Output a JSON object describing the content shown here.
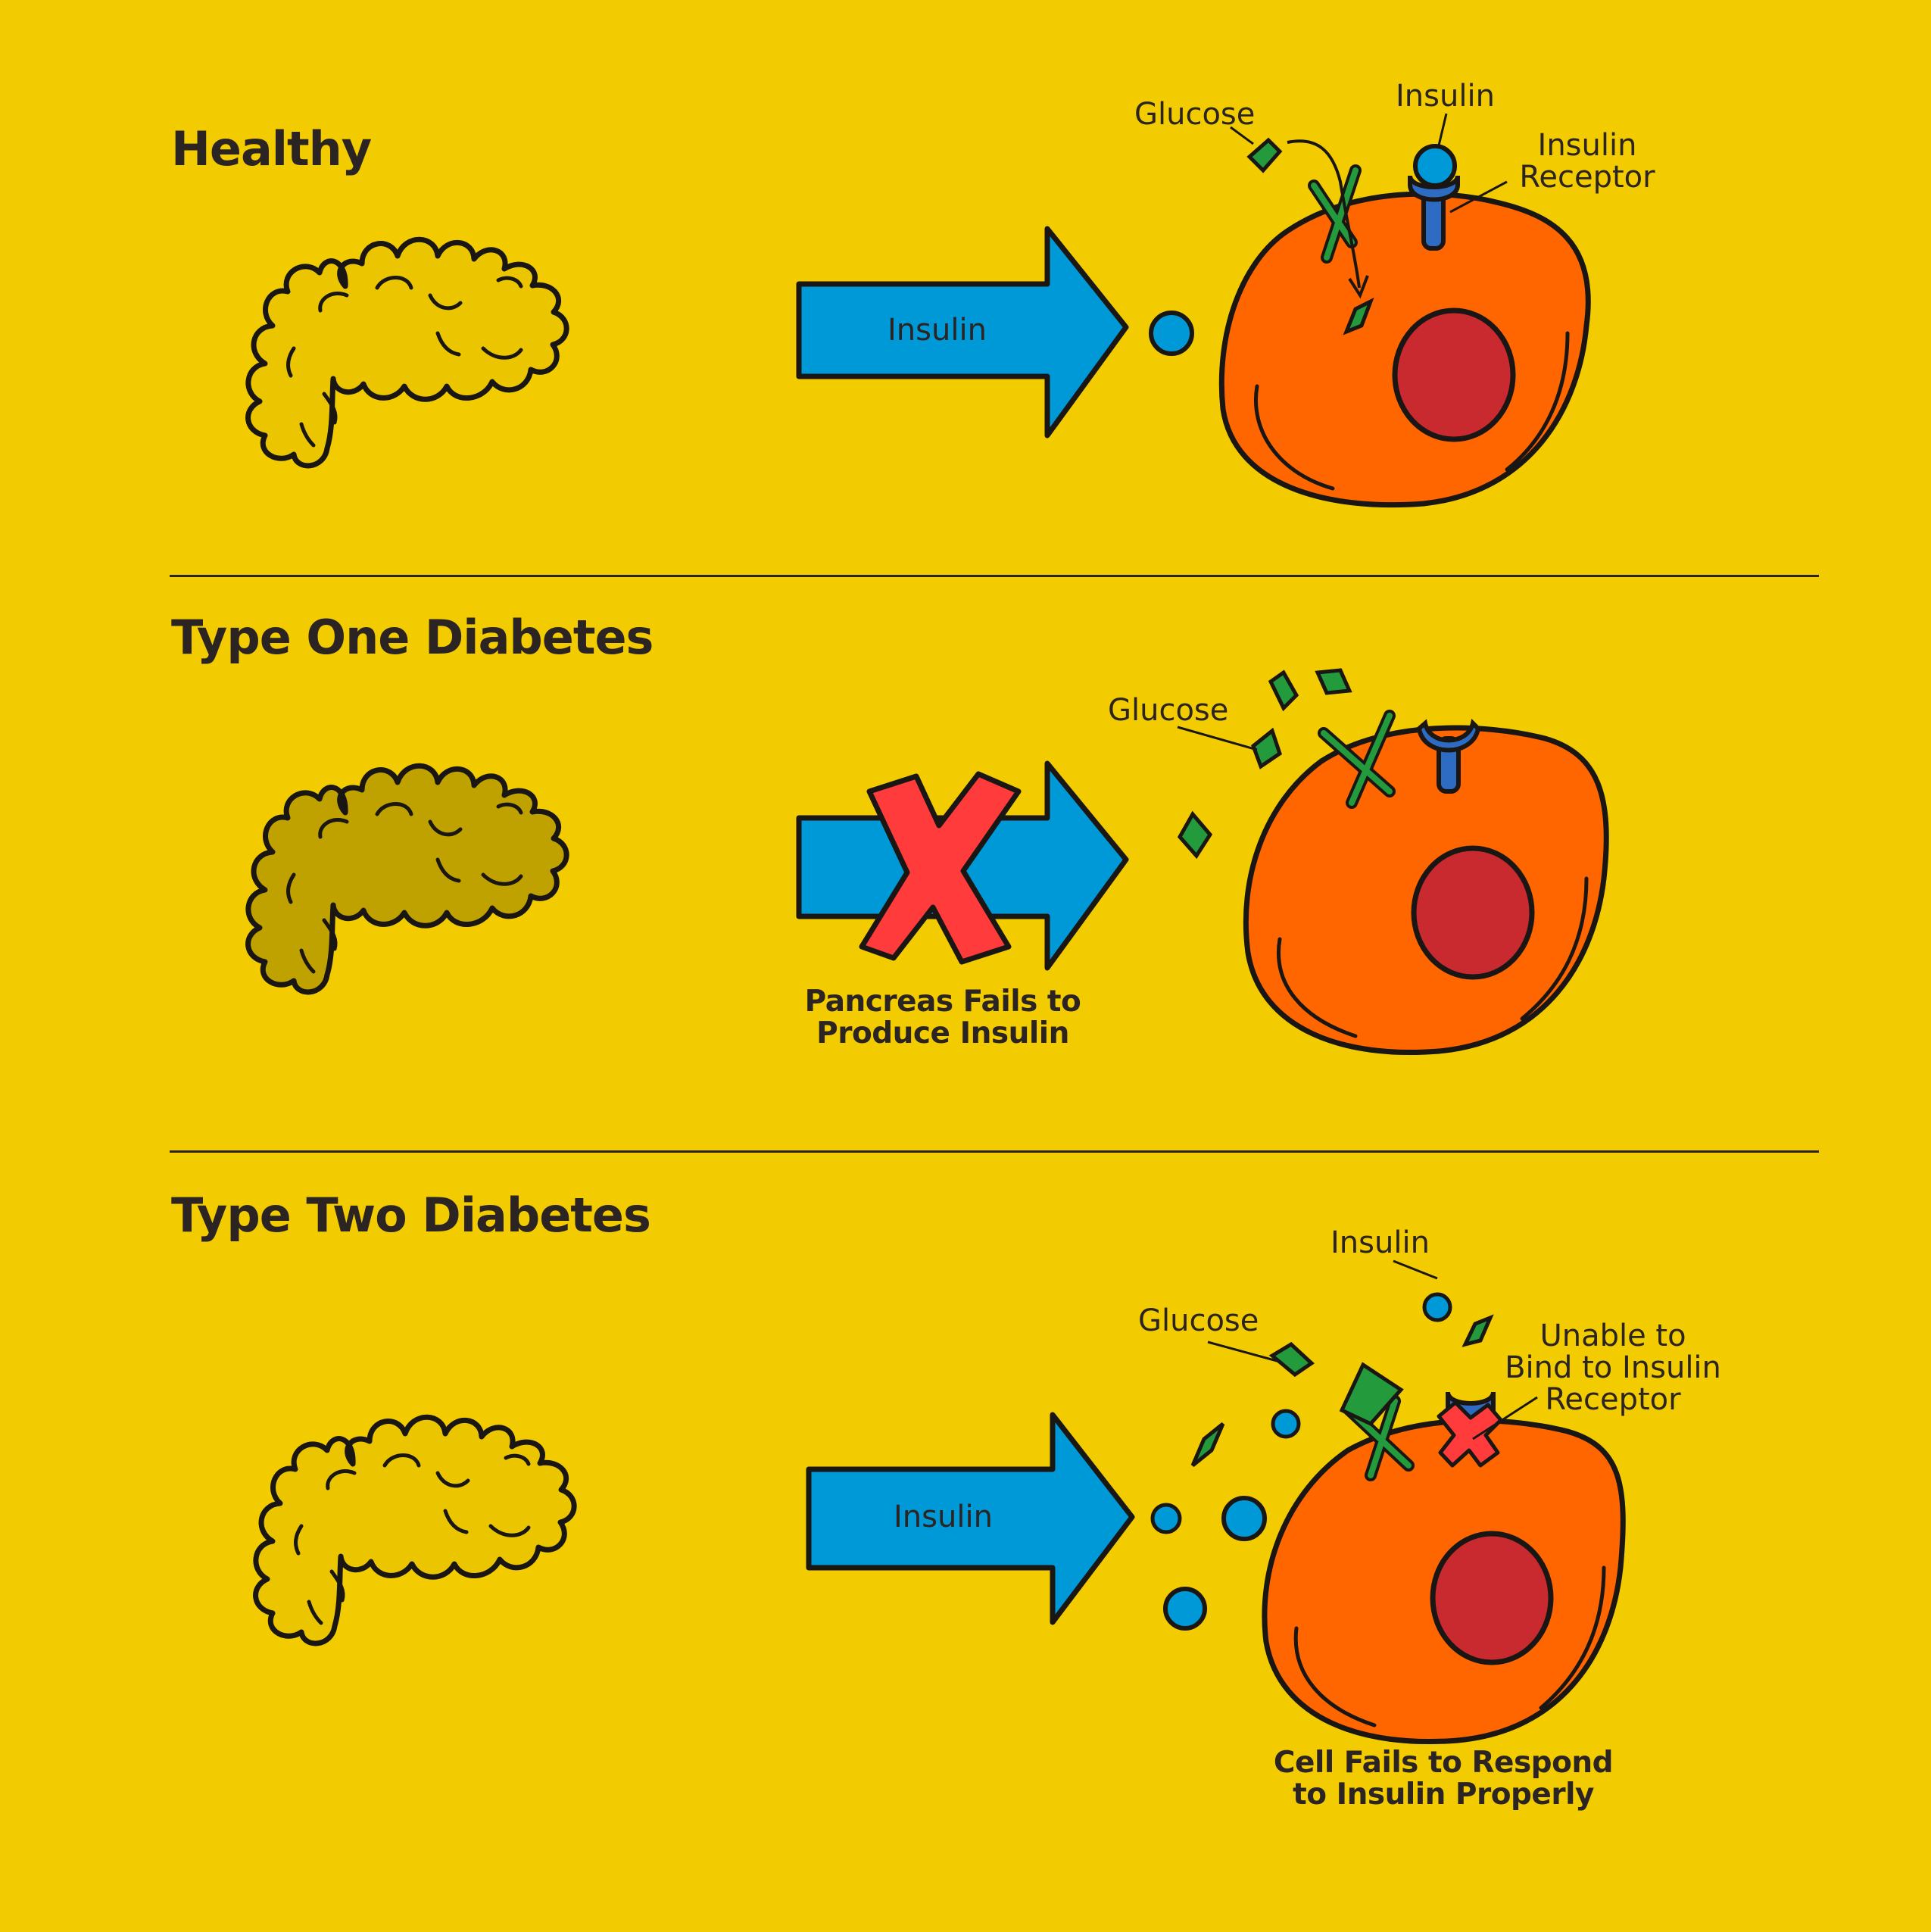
{
  "colors": {
    "background": "#f2cc00",
    "ink": "#2b2422",
    "healthy_pancreas": "#eac500",
    "damaged_pancreas": "#bfa100",
    "insulin_arrow": "#0099d8",
    "cell": "#ff6600",
    "nucleus": "#c92a2f",
    "glucose": "#239a3c",
    "receptor": "#2e6cc4",
    "block_x": "#ff3b3b"
  },
  "sections": {
    "healthy": {
      "title": "Healthy",
      "arrow_label": "Insulin",
      "glucose_label": "Glucose",
      "insulin_label": "Insulin",
      "receptor_label_line1": "Insulin",
      "receptor_label_line2": "Receptor"
    },
    "type_one": {
      "title": "Type One Diabetes",
      "glucose_label": "Glucose",
      "caption_line1": "Pancreas Fails to",
      "caption_line2": "Produce Insulin"
    },
    "type_two": {
      "title": "Type Two Diabetes",
      "arrow_label": "Insulin",
      "glucose_label": "Glucose",
      "insulin_label": "Insulin",
      "bind_label_line1": "Unable to",
      "bind_label_line2": "Bind to Insulin",
      "bind_label_line3": "Receptor",
      "caption_line1": "Cell Fails to Respond",
      "caption_line2": "to Insulin Properly"
    }
  }
}
